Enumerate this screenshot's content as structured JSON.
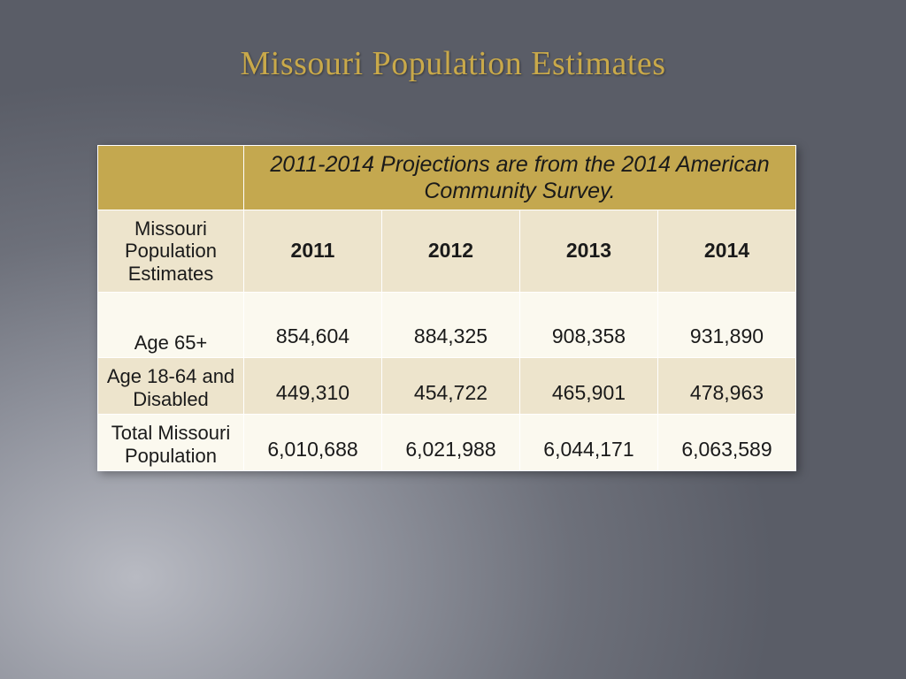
{
  "title": "Missouri Population Estimates",
  "table": {
    "banner": "2011-2014 Projections are from the 2014 American Community Survey.",
    "cornerLabel": "Missouri Population Estimates",
    "years": [
      "2011",
      "2012",
      "2013",
      "2014"
    ],
    "rows": [
      {
        "label": "Age 65+",
        "values": [
          "854,604",
          "884,325",
          "908,358",
          "931,890"
        ]
      },
      {
        "label": "Age 18-64 and Disabled",
        "values": [
          "449,310",
          "454,722",
          "465,901",
          "478,963"
        ]
      },
      {
        "label": "Total Missouri Population",
        "values": [
          "6,010,688",
          "6,021,988",
          "6,044,171",
          "6,063,589"
        ]
      }
    ],
    "colors": {
      "headerBg": "#c4a84f",
      "altRowA": "#fbf9ef",
      "altRowB": "#ede4cc",
      "border": "#ffffff",
      "titleColor": "#c9a94a"
    }
  }
}
